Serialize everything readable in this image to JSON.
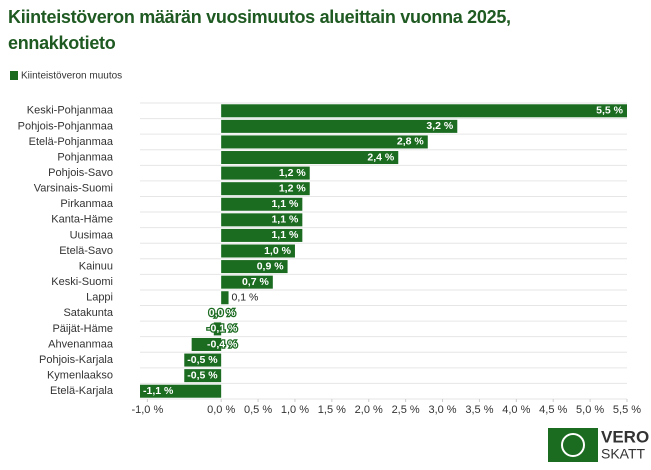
{
  "chart_data": {
    "type": "hbar",
    "title": "Kiinteistöveron määrän vuosimuutos alueittain vuonna 2025, ennakkotieto",
    "legend": "Kiinteistöveron muutos",
    "color": "#1b6b21",
    "categories": [
      "Keski-Pohjanmaa",
      "Pohjois-Pohjanmaa",
      "Etelä-Pohjanmaa",
      "Pohjanmaa",
      "Pohjois-Savo",
      "Varsinais-Suomi",
      "Pirkanmaa",
      "Kanta-Häme",
      "Uusimaa",
      "Etelä-Savo",
      "Kainuu",
      "Keski-Suomi",
      "Lappi",
      "Satakunta",
      "Päijät-Häme",
      "Ahvenanmaa",
      "Pohjois-Karjala",
      "Kymenlaakso",
      "Etelä-Karjala"
    ],
    "values": [
      5.5,
      3.2,
      2.8,
      2.4,
      1.2,
      1.2,
      1.1,
      1.1,
      1.1,
      1.0,
      0.9,
      0.7,
      0.1,
      0.0,
      -0.1,
      -0.4,
      -0.5,
      -0.5,
      -1.1
    ],
    "value_labels": [
      "5,5 %",
      "3,2 %",
      "2,8 %",
      "2,4 %",
      "1,2 %",
      "1,2 %",
      "1,1 %",
      "1,1 %",
      "1,1 %",
      "1,0 %",
      "0,9 %",
      "0,7 %",
      "0,1 %",
      "0,0 %",
      "-0,1 %",
      "-0,4 %",
      "-0,5 %",
      "-0,5 %",
      "-1,1 %"
    ],
    "xlim": [
      -1.1,
      5.5
    ],
    "xticks": [
      {
        "value": -1.0,
        "label": "-1,0 %"
      },
      {
        "value": 0.0,
        "label": "0,0 %"
      },
      {
        "value": 0.5,
        "label": "0,5 %"
      },
      {
        "value": 1.0,
        "label": "1,0 %"
      },
      {
        "value": 1.5,
        "label": "1,5 %"
      },
      {
        "value": 2.0,
        "label": "2,0 %"
      },
      {
        "value": 2.5,
        "label": "2,5 %"
      },
      {
        "value": 3.0,
        "label": "3,0 %"
      },
      {
        "value": 3.5,
        "label": "3,5 %"
      },
      {
        "value": 4.0,
        "label": "4,0 %"
      },
      {
        "value": 4.5,
        "label": "4,5 %"
      },
      {
        "value": 5.0,
        "label": "5,0 %"
      },
      {
        "value": 5.5,
        "label": "5,5 %"
      }
    ],
    "logo": {
      "top": "VERO",
      "bottom": "SKATT"
    }
  }
}
